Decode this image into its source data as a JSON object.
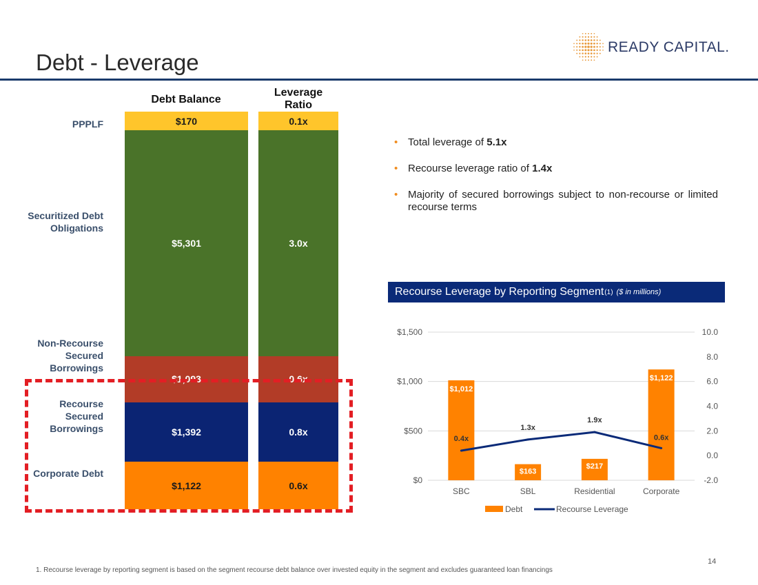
{
  "slide": {
    "title": "Debt - Leverage",
    "logo_text": "READY CAPITAL.",
    "page_number": "14",
    "footnote": "1. Recourse leverage by reporting segment is based on the segment recourse debt balance over invested equity in the segment and excludes guaranteed loan financings"
  },
  "colors": {
    "navy": "#0a2a78",
    "rule": "#1a3a6b",
    "orange": "#ff8200",
    "dash_red": "#e31e24",
    "pppl_yellow": "#ffc52b",
    "green": "#4a7329",
    "brick": "#b23c27",
    "blue": "#0b2473"
  },
  "stacked": {
    "balance_header": "Debt Balance",
    "ratio_header": "Leverage Ratio",
    "rows": [
      {
        "label": "PPPLF",
        "balance": "$170",
        "ratio": "0.1x",
        "color": "#ffc52b",
        "text_color": "#1a1a1a"
      },
      {
        "label": "Securitized Debt Obligations",
        "balance": "$5,301",
        "ratio": "3.0x",
        "color": "#4a7329",
        "text_color": "#ffffff"
      },
      {
        "label": "Non-Recourse Secured Borrowings",
        "balance": "$1,093",
        "ratio": "0.6x",
        "color": "#b23c27",
        "text_color": "#ffffff"
      },
      {
        "label": "Recourse Secured Borrowings",
        "balance": "$1,392",
        "ratio": "0.8x",
        "color": "#0b2473",
        "text_color": "#ffffff"
      },
      {
        "label": "Corporate Debt",
        "balance": "$1,122",
        "ratio": "0.6x",
        "color": "#ff8200",
        "text_color": "#1a1a1a"
      }
    ]
  },
  "bullets": {
    "b1_text": "Total leverage of ",
    "b1_bold": "5.1x",
    "b2_text": "Recourse leverage ratio of ",
    "b2_bold": "1.4x",
    "b3_text": "Majority of secured borrowings subject to non-recourse or limited recourse terms"
  },
  "panel": {
    "title": "Recourse Leverage by Reporting Segment",
    "superscript": "(1)",
    "units": "($ in millions)"
  },
  "chart_data": {
    "type": "bar",
    "categories": [
      "SBC",
      "SBL",
      "Residential",
      "Corporate"
    ],
    "series": [
      {
        "name": "Debt",
        "type": "bar",
        "axis": "left",
        "values": [
          1012,
          163,
          217,
          1122
        ],
        "labels": [
          "$1,012",
          "$163",
          "$217",
          "$1,122"
        ],
        "color": "#ff8200"
      },
      {
        "name": "Recourse Leverage",
        "type": "line",
        "axis": "right",
        "values": [
          0.4,
          1.3,
          1.9,
          0.6
        ],
        "labels": [
          "0.4x",
          "1.3x",
          "1.9x",
          "0.6x"
        ],
        "color": "#0a2a78"
      }
    ],
    "y_left": {
      "min": 0,
      "max": 1500,
      "ticks": [
        0,
        500,
        1000,
        1500
      ],
      "tick_labels": [
        "$0",
        "$500",
        "$1,000",
        "$1,500"
      ]
    },
    "y_right": {
      "min": -2,
      "max": 10,
      "ticks": [
        -2,
        0,
        2,
        4,
        6,
        8,
        10
      ],
      "tick_labels": [
        "-2.0",
        "0.0",
        "2.0",
        "4.0",
        "6.0",
        "8.0",
        "10.0"
      ]
    },
    "grid": true,
    "legend": "bottom"
  }
}
